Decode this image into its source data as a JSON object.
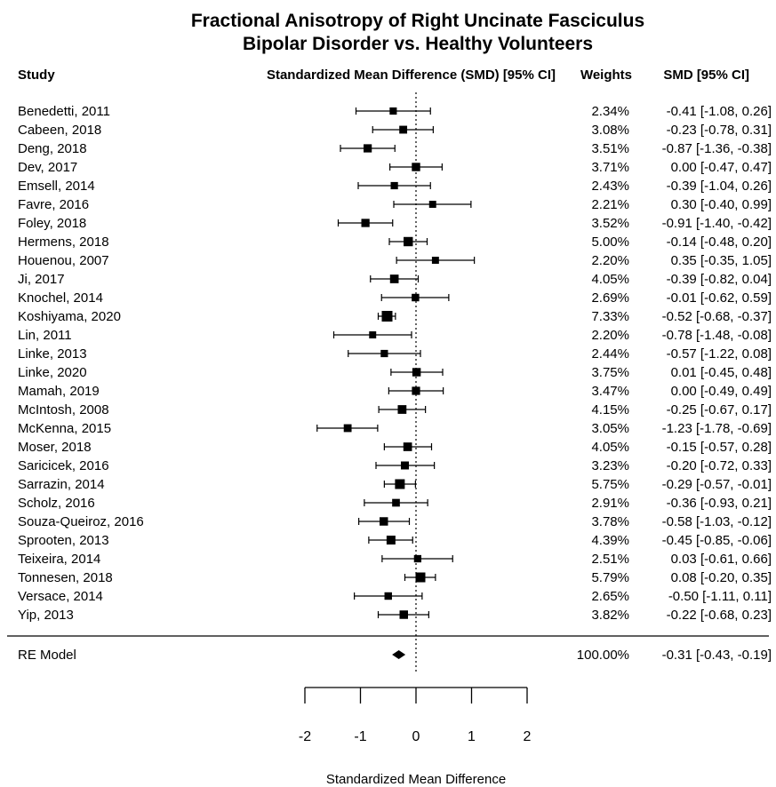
{
  "chart_data": {
    "type": "forest",
    "title": "Fractional Anisotropy of Right Uncinate Fasciculus",
    "subtitle": "Bipolar Disorder vs. Healthy Volunteers",
    "headers": {
      "study": "Study",
      "plot": "Standardized Mean Difference (SMD) [95% CI]",
      "weights": "Weights",
      "ci": "SMD [95% CI]"
    },
    "xlabel": "Standardized Mean Difference",
    "xlim": [
      -2,
      2
    ],
    "xticks": [
      "-2",
      "-1",
      "0",
      "1",
      "2"
    ],
    "reference_line": 0,
    "studies": [
      {
        "study": "Benedetti, 2011",
        "smd": -0.41,
        "lower": -1.08,
        "upper": 0.26,
        "weight": "2.34%",
        "ci_text": "-0.41 [-1.08,  0.26]"
      },
      {
        "study": "Cabeen, 2018",
        "smd": -0.23,
        "lower": -0.78,
        "upper": 0.31,
        "weight": "3.08%",
        "ci_text": "-0.23 [-0.78,  0.31]"
      },
      {
        "study": "Deng, 2018",
        "smd": -0.87,
        "lower": -1.36,
        "upper": -0.38,
        "weight": "3.51%",
        "ci_text": "-0.87 [-1.36, -0.38]"
      },
      {
        "study": "Dev, 2017",
        "smd": 0.0,
        "lower": -0.47,
        "upper": 0.47,
        "weight": "3.71%",
        "ci_text": "0.00 [-0.47,  0.47]"
      },
      {
        "study": "Emsell, 2014",
        "smd": -0.39,
        "lower": -1.04,
        "upper": 0.26,
        "weight": "2.43%",
        "ci_text": "-0.39 [-1.04,  0.26]"
      },
      {
        "study": "Favre, 2016",
        "smd": 0.3,
        "lower": -0.4,
        "upper": 0.99,
        "weight": "2.21%",
        "ci_text": "0.30 [-0.40,  0.99]"
      },
      {
        "study": "Foley, 2018",
        "smd": -0.91,
        "lower": -1.4,
        "upper": -0.42,
        "weight": "3.52%",
        "ci_text": "-0.91 [-1.40, -0.42]"
      },
      {
        "study": "Hermens, 2018",
        "smd": -0.14,
        "lower": -0.48,
        "upper": 0.2,
        "weight": "5.00%",
        "ci_text": "-0.14 [-0.48,  0.20]"
      },
      {
        "study": "Houenou, 2007",
        "smd": 0.35,
        "lower": -0.35,
        "upper": 1.05,
        "weight": "2.20%",
        "ci_text": "0.35 [-0.35,  1.05]"
      },
      {
        "study": "Ji, 2017",
        "smd": -0.39,
        "lower": -0.82,
        "upper": 0.04,
        "weight": "4.05%",
        "ci_text": "-0.39 [-0.82,  0.04]"
      },
      {
        "study": "Knochel, 2014",
        "smd": -0.01,
        "lower": -0.62,
        "upper": 0.59,
        "weight": "2.69%",
        "ci_text": "-0.01 [-0.62,  0.59]"
      },
      {
        "study": "Koshiyama, 2020",
        "smd": -0.52,
        "lower": -0.68,
        "upper": -0.37,
        "weight": "7.33%",
        "ci_text": "-0.52 [-0.68, -0.37]"
      },
      {
        "study": "Lin, 2011",
        "smd": -0.78,
        "lower": -1.48,
        "upper": -0.08,
        "weight": "2.20%",
        "ci_text": "-0.78 [-1.48, -0.08]"
      },
      {
        "study": "Linke, 2013",
        "smd": -0.57,
        "lower": -1.22,
        "upper": 0.08,
        "weight": "2.44%",
        "ci_text": "-0.57 [-1.22,  0.08]"
      },
      {
        "study": "Linke, 2020",
        "smd": 0.01,
        "lower": -0.45,
        "upper": 0.48,
        "weight": "3.75%",
        "ci_text": "0.01 [-0.45,  0.48]"
      },
      {
        "study": "Mamah, 2019",
        "smd": 0.0,
        "lower": -0.49,
        "upper": 0.49,
        "weight": "3.47%",
        "ci_text": "0.00 [-0.49,  0.49]"
      },
      {
        "study": "McIntosh, 2008",
        "smd": -0.25,
        "lower": -0.67,
        "upper": 0.17,
        "weight": "4.15%",
        "ci_text": "-0.25 [-0.67,  0.17]"
      },
      {
        "study": "McKenna, 2015",
        "smd": -1.23,
        "lower": -1.78,
        "upper": -0.69,
        "weight": "3.05%",
        "ci_text": "-1.23 [-1.78, -0.69]"
      },
      {
        "study": "Moser, 2018",
        "smd": -0.15,
        "lower": -0.57,
        "upper": 0.28,
        "weight": "4.05%",
        "ci_text": "-0.15 [-0.57,  0.28]"
      },
      {
        "study": "Saricicek, 2016",
        "smd": -0.2,
        "lower": -0.72,
        "upper": 0.33,
        "weight": "3.23%",
        "ci_text": "-0.20 [-0.72,  0.33]"
      },
      {
        "study": "Sarrazin, 2014",
        "smd": -0.29,
        "lower": -0.57,
        "upper": -0.01,
        "weight": "5.75%",
        "ci_text": "-0.29 [-0.57, -0.01]"
      },
      {
        "study": "Scholz, 2016",
        "smd": -0.36,
        "lower": -0.93,
        "upper": 0.21,
        "weight": "2.91%",
        "ci_text": "-0.36 [-0.93,  0.21]"
      },
      {
        "study": "Souza-Queiroz, 2016",
        "smd": -0.58,
        "lower": -1.03,
        "upper": -0.12,
        "weight": "3.78%",
        "ci_text": "-0.58 [-1.03, -0.12]"
      },
      {
        "study": "Sprooten, 2013",
        "smd": -0.45,
        "lower": -0.85,
        "upper": -0.06,
        "weight": "4.39%",
        "ci_text": "-0.45 [-0.85, -0.06]"
      },
      {
        "study": "Teixeira, 2014",
        "smd": 0.03,
        "lower": -0.61,
        "upper": 0.66,
        "weight": "2.51%",
        "ci_text": "0.03 [-0.61,  0.66]"
      },
      {
        "study": "Tonnesen, 2018",
        "smd": 0.08,
        "lower": -0.2,
        "upper": 0.35,
        "weight": "5.79%",
        "ci_text": "0.08 [-0.20,  0.35]"
      },
      {
        "study": "Versace, 2014",
        "smd": -0.5,
        "lower": -1.11,
        "upper": 0.11,
        "weight": "2.65%",
        "ci_text": "-0.50 [-1.11,  0.11]"
      },
      {
        "study": "Yip, 2013",
        "smd": -0.22,
        "lower": -0.68,
        "upper": 0.23,
        "weight": "3.82%",
        "ci_text": "-0.22 [-0.68,  0.23]"
      }
    ],
    "summary": {
      "label": "RE Model",
      "smd": -0.31,
      "lower": -0.43,
      "upper": -0.19,
      "weight": "100.00%",
      "ci_text": "-0.31 [-0.43, -0.19]"
    }
  }
}
